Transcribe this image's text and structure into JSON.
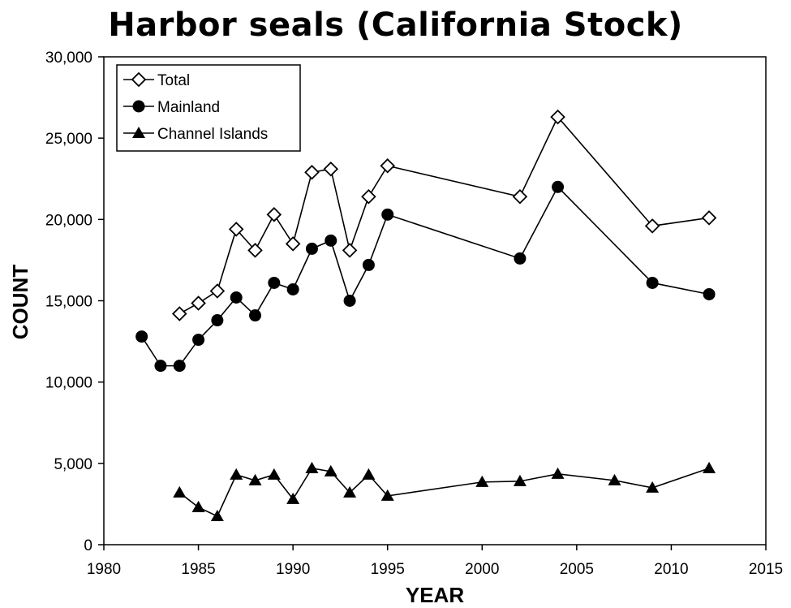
{
  "chart_data": {
    "type": "line",
    "title": "Harbor seals (California Stock)",
    "xlabel": "YEAR",
    "ylabel": "COUNT",
    "xlim": [
      1980,
      2015
    ],
    "ylim": [
      0,
      30000
    ],
    "xticks": [
      1980,
      1985,
      1990,
      1995,
      2000,
      2005,
      2010,
      2015
    ],
    "yticks": [
      0,
      5000,
      10000,
      15000,
      20000,
      25000,
      30000
    ],
    "xtick_labels": [
      "1980",
      "1985",
      "1990",
      "1995",
      "2000",
      "2005",
      "2010",
      "2015"
    ],
    "ytick_labels": [
      "0",
      "5,000",
      "10,000",
      "15,000",
      "20,000",
      "25,000",
      "30,000"
    ],
    "grid": false,
    "legend_position": "top-left",
    "series": [
      {
        "name": "Total",
        "marker": "open-diamond",
        "x": [
          1984,
          1985,
          1986,
          1987,
          1988,
          1989,
          1990,
          1991,
          1992,
          1993,
          1994,
          1995,
          2002,
          2004,
          2009,
          2012
        ],
        "y": [
          14200,
          14850,
          15600,
          19400,
          18100,
          20300,
          18500,
          22900,
          23100,
          18100,
          21400,
          23300,
          21400,
          26300,
          19600,
          20100
        ]
      },
      {
        "name": "Mainland",
        "marker": "filled-circle",
        "x": [
          1982,
          1983,
          1984,
          1985,
          1986,
          1987,
          1988,
          1989,
          1990,
          1991,
          1992,
          1993,
          1994,
          1995,
          2002,
          2004,
          2009,
          2012
        ],
        "y": [
          12800,
          11000,
          11000,
          12600,
          13800,
          15200,
          14100,
          16100,
          15700,
          18200,
          18700,
          15000,
          17200,
          20300,
          17600,
          22000,
          16100,
          15400
        ]
      },
      {
        "name": "Channel Islands",
        "marker": "filled-triangle",
        "x": [
          1984,
          1985,
          1986,
          1987,
          1988,
          1989,
          1990,
          1991,
          1992,
          1993,
          1994,
          1995,
          2000,
          2002,
          2004,
          2007,
          2009,
          2012
        ],
        "y": [
          3200,
          2300,
          1750,
          4300,
          3950,
          4300,
          2800,
          4700,
          4500,
          3200,
          4300,
          3000,
          3850,
          3900,
          4350,
          3950,
          3500,
          4700
        ]
      }
    ]
  }
}
